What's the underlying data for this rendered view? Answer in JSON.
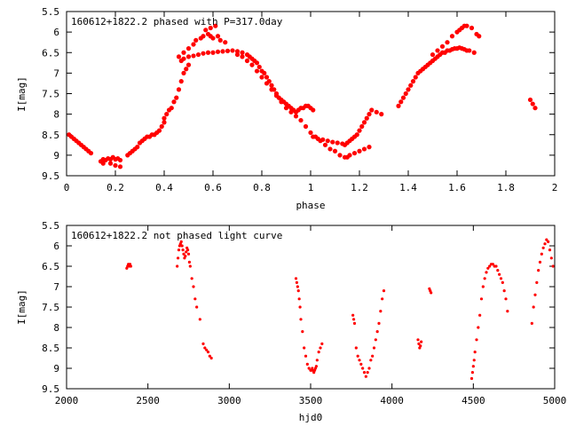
{
  "chart_data": [
    {
      "type": "scatter",
      "title": "160612+1822.2 phased with P=317.0day",
      "xlabel": "phase",
      "ylabel": "I[mag]",
      "xlim": [
        0,
        2
      ],
      "ylim": [
        9.5,
        5.5
      ],
      "y_inverted": true,
      "grid": false,
      "marker_color": "#ff0000",
      "xticks": [
        "0",
        "0.2",
        "0.4",
        "0.6",
        "0.8",
        "1",
        "1.2",
        "1.4",
        "1.6",
        "1.8",
        "2"
      ],
      "yticks": [
        "5.5",
        "6",
        "6.5",
        "7",
        "7.5",
        "8",
        "8.5",
        "9",
        "9.5"
      ],
      "x": [
        0.01,
        0.02,
        0.03,
        0.04,
        0.05,
        0.06,
        0.07,
        0.08,
        0.09,
        0.1,
        0.14,
        0.15,
        0.16,
        0.17,
        0.18,
        0.19,
        0.2,
        0.21,
        0.22,
        0.15,
        0.18,
        0.2,
        0.22,
        0.25,
        0.26,
        0.27,
        0.28,
        0.29,
        0.3,
        0.31,
        0.32,
        0.33,
        0.34,
        0.35,
        0.36,
        0.37,
        0.38,
        0.39,
        0.4,
        0.4,
        0.41,
        0.42,
        0.43,
        0.44,
        0.45,
        0.46,
        0.47,
        0.48,
        0.49,
        0.5,
        0.46,
        0.48,
        0.5,
        0.52,
        0.53,
        0.55,
        0.56,
        0.58,
        0.59,
        0.6,
        0.62,
        0.63,
        0.65,
        0.57,
        0.59,
        0.61,
        0.47,
        0.48,
        0.5,
        0.52,
        0.54,
        0.56,
        0.58,
        0.6,
        0.62,
        0.64,
        0.66,
        0.68,
        0.7,
        0.72,
        0.74,
        0.75,
        0.76,
        0.77,
        0.78,
        0.79,
        0.8,
        0.81,
        0.82,
        0.83,
        0.84,
        0.85,
        0.86,
        0.87,
        0.88,
        0.89,
        0.9,
        0.91,
        0.92,
        0.93,
        0.94,
        0.95,
        0.96,
        0.97,
        0.98,
        0.99,
        1.0,
        1.01,
        0.7,
        0.72,
        0.74,
        0.76,
        0.78,
        0.8,
        0.82,
        0.84,
        0.86,
        0.88,
        0.9,
        0.92,
        0.94,
        0.96,
        0.98,
        1.0,
        1.02,
        1.04,
        1.06,
        1.08,
        1.1,
        1.12,
        1.14,
        1.15,
        1.16,
        1.18,
        1.2,
        1.22,
        1.24,
        1.01,
        1.03,
        1.05,
        1.07,
        1.09,
        1.11,
        1.13,
        1.14,
        1.15,
        1.16,
        1.17,
        1.18,
        1.19,
        1.2,
        1.21,
        1.22,
        1.23,
        1.24,
        1.25,
        1.27,
        1.29,
        1.36,
        1.37,
        1.38,
        1.39,
        1.4,
        1.41,
        1.42,
        1.43,
        1.44,
        1.45,
        1.46,
        1.47,
        1.48,
        1.49,
        1.5,
        1.51,
        1.52,
        1.53,
        1.54,
        1.55,
        1.56,
        1.57,
        1.58,
        1.59,
        1.6,
        1.61,
        1.62,
        1.63,
        1.64,
        1.65,
        1.5,
        1.52,
        1.54,
        1.56,
        1.58,
        1.6,
        1.61,
        1.62,
        1.63,
        1.64,
        1.66,
        1.68,
        1.69,
        1.67,
        1.9,
        1.91,
        1.92
      ],
      "y": [
        8.5,
        8.55,
        8.6,
        8.65,
        8.7,
        8.75,
        8.8,
        8.85,
        8.9,
        8.95,
        9.15,
        9.1,
        9.12,
        9.08,
        9.1,
        9.05,
        9.1,
        9.08,
        9.12,
        9.2,
        9.2,
        9.25,
        9.28,
        9.0,
        8.95,
        8.9,
        8.85,
        8.8,
        8.7,
        8.65,
        8.6,
        8.55,
        8.55,
        8.5,
        8.5,
        8.45,
        8.4,
        8.3,
        8.2,
        8.1,
        8.0,
        7.9,
        7.85,
        7.7,
        7.6,
        7.4,
        7.2,
        7.0,
        6.9,
        6.8,
        6.6,
        6.5,
        6.4,
        6.3,
        6.2,
        6.15,
        6.1,
        6.05,
        6.1,
        6.15,
        6.1,
        6.2,
        6.25,
        5.95,
        5.9,
        5.85,
        6.7,
        6.65,
        6.6,
        6.58,
        6.55,
        6.52,
        6.5,
        6.5,
        6.48,
        6.47,
        6.46,
        6.45,
        6.47,
        6.5,
        6.55,
        6.6,
        6.65,
        6.7,
        6.75,
        6.85,
        6.95,
        7.0,
        7.1,
        7.2,
        7.3,
        7.4,
        7.5,
        7.6,
        7.65,
        7.7,
        7.75,
        7.8,
        7.85,
        7.9,
        7.95,
        7.9,
        7.85,
        7.85,
        7.8,
        7.8,
        7.85,
        7.9,
        6.55,
        6.6,
        6.7,
        6.8,
        6.95,
        7.1,
        7.25,
        7.4,
        7.55,
        7.7,
        7.85,
        7.95,
        8.05,
        8.15,
        8.3,
        8.45,
        8.55,
        8.65,
        8.75,
        8.85,
        8.9,
        9.0,
        9.05,
        9.05,
        9.0,
        8.95,
        8.9,
        8.85,
        8.8,
        8.55,
        8.6,
        8.62,
        8.65,
        8.68,
        8.7,
        8.72,
        8.75,
        8.7,
        8.65,
        8.6,
        8.55,
        8.5,
        8.4,
        8.3,
        8.2,
        8.1,
        8.0,
        7.9,
        7.95,
        8.0,
        7.8,
        7.7,
        7.6,
        7.5,
        7.4,
        7.3,
        7.2,
        7.1,
        7.0,
        6.95,
        6.9,
        6.85,
        6.8,
        6.75,
        6.7,
        6.65,
        6.6,
        6.55,
        6.5,
        6.5,
        6.45,
        6.45,
        6.42,
        6.4,
        6.4,
        6.38,
        6.4,
        6.42,
        6.45,
        6.45,
        6.55,
        6.45,
        6.35,
        6.25,
        6.1,
        6.0,
        5.95,
        5.9,
        5.85,
        5.85,
        5.9,
        6.05,
        6.1,
        6.5,
        7.65,
        7.75,
        7.85
      ]
    },
    {
      "type": "scatter",
      "title": "160612+1822.2 not phased light curve",
      "xlabel": "hjd0",
      "ylabel": "I[mag]",
      "xlim": [
        2000,
        5000
      ],
      "ylim": [
        9.5,
        5.5
      ],
      "y_inverted": true,
      "grid": false,
      "marker_color": "#ff0000",
      "xticks": [
        "2000",
        "2500",
        "3000",
        "3500",
        "4000",
        "4500",
        "5000"
      ],
      "yticks": [
        "5.5",
        "6",
        "6.5",
        "7",
        "7.5",
        "8",
        "8.5",
        "9",
        "9.5"
      ],
      "x": [
        2370,
        2375,
        2380,
        2385,
        2390,
        2395,
        2680,
        2685,
        2690,
        2695,
        2700,
        2705,
        2710,
        2715,
        2720,
        2725,
        2730,
        2735,
        2740,
        2745,
        2750,
        2755,
        2760,
        2770,
        2780,
        2790,
        2800,
        2820,
        2840,
        2850,
        2860,
        2870,
        2880,
        2890,
        3410,
        3415,
        3420,
        3425,
        3430,
        3435,
        3440,
        3450,
        3460,
        3470,
        3480,
        3490,
        3500,
        3505,
        3510,
        3515,
        3520,
        3525,
        3530,
        3535,
        3540,
        3550,
        3560,
        3570,
        3760,
        3765,
        3770,
        3780,
        3790,
        3800,
        3810,
        3820,
        3830,
        3840,
        3850,
        3860,
        3870,
        3880,
        3890,
        3900,
        3910,
        3920,
        3930,
        3940,
        3950,
        4160,
        4165,
        4170,
        4175,
        4180,
        4230,
        4235,
        4240,
        4490,
        4495,
        4500,
        4505,
        4510,
        4520,
        4530,
        4540,
        4550,
        4560,
        4570,
        4580,
        4590,
        4600,
        4610,
        4620,
        4630,
        4640,
        4650,
        4660,
        4670,
        4680,
        4690,
        4700,
        4710,
        4860,
        4870,
        4880,
        4890,
        4900,
        4910,
        4920,
        4930,
        4940,
        4950,
        4960,
        4970,
        4980,
        4990
      ],
      "y": [
        6.55,
        6.5,
        6.45,
        6.5,
        6.45,
        6.5,
        6.5,
        6.3,
        6.1,
        6.0,
        5.95,
        5.9,
        6.0,
        6.1,
        6.2,
        6.3,
        6.25,
        6.15,
        6.05,
        6.1,
        6.2,
        6.4,
        6.5,
        6.8,
        7.0,
        7.3,
        7.5,
        7.8,
        8.4,
        8.5,
        8.55,
        8.6,
        8.7,
        8.75,
        6.8,
        6.9,
        7.0,
        7.1,
        7.3,
        7.5,
        7.8,
        8.1,
        8.5,
        8.7,
        8.9,
        9.0,
        9.05,
        9.05,
        9.0,
        9.05,
        9.1,
        9.05,
        9.0,
        8.95,
        8.8,
        8.6,
        8.5,
        8.4,
        7.7,
        7.8,
        7.9,
        8.5,
        8.7,
        8.8,
        8.9,
        9.0,
        9.1,
        9.2,
        9.1,
        9.0,
        8.8,
        8.7,
        8.5,
        8.3,
        8.1,
        7.9,
        7.6,
        7.3,
        7.1,
        8.3,
        8.4,
        8.5,
        8.45,
        8.35,
        7.05,
        7.1,
        7.15,
        9.25,
        9.1,
        8.95,
        8.8,
        8.6,
        8.3,
        8.0,
        7.7,
        7.3,
        7.0,
        6.8,
        6.65,
        6.55,
        6.5,
        6.45,
        6.45,
        6.5,
        6.5,
        6.6,
        6.7,
        6.8,
        6.9,
        7.1,
        7.3,
        7.6,
        7.9,
        7.5,
        7.2,
        6.9,
        6.6,
        6.4,
        6.2,
        6.05,
        5.95,
        5.85,
        5.9,
        6.1,
        6.3,
        6.5
      ]
    }
  ]
}
